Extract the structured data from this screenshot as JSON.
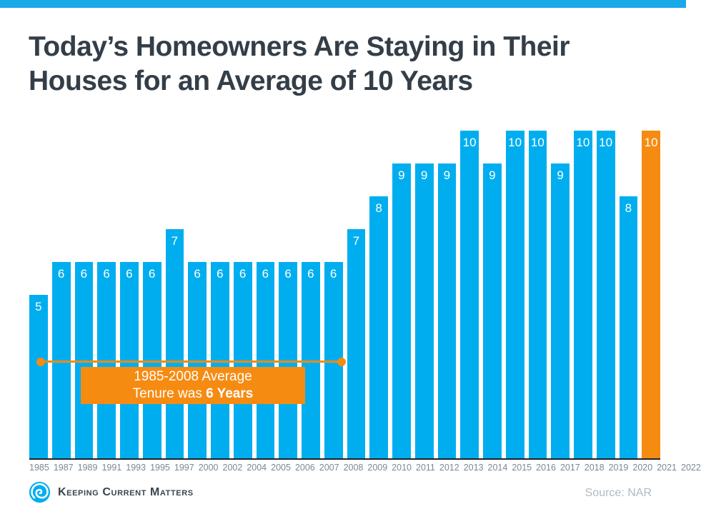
{
  "page": {
    "title_line1": "Today’s Homeowners Are Staying in Their",
    "title_line2": "Houses for an Average of 10 Years",
    "logo_text": "Keeping Current Matters",
    "source": "Source: NAR"
  },
  "colors": {
    "top_strip_blue": "#18a9e8",
    "bar_blue": "#00aeef",
    "highlight_orange": "#f68b12",
    "title_text": "#333e48",
    "axis_label_gray": "#7d8791",
    "source_gray": "#b0bac2",
    "axis_line": "#1d2126",
    "bar_value_text": "#ffffff"
  },
  "chart_data": {
    "type": "bar",
    "title": "Today’s Homeowners Are Staying in Their Houses for an Average of 10 Years",
    "categories": [
      "1985",
      "1987",
      "1989",
      "1991",
      "1993",
      "1995",
      "1997",
      "2000",
      "2002",
      "2004",
      "2005",
      "2006",
      "2007",
      "2008",
      "2009",
      "2010",
      "2011",
      "2012",
      "2013",
      "2014",
      "2015",
      "2016",
      "2017",
      "2018",
      "2019",
      "2020",
      "2021",
      "2022"
    ],
    "values": [
      5,
      6,
      6,
      6,
      6,
      6,
      7,
      6,
      6,
      6,
      6,
      6,
      6,
      6,
      7,
      8,
      9,
      9,
      9,
      10,
      9,
      10,
      10,
      9,
      10,
      10,
      8,
      10
    ],
    "bar_color": "#00aeef",
    "highlight_category": "2022",
    "highlight_color": "#f68b12",
    "value_labels_shown": true,
    "xlabel": "",
    "ylabel": "",
    "ylim": [
      0,
      10
    ],
    "grid": false,
    "legend": false,
    "annotation": {
      "line1": "1985-2008 Average",
      "line2_normal": "Tenure was ",
      "line2_bold": "6 Years",
      "span_start": "1985",
      "span_end": "2008"
    }
  }
}
